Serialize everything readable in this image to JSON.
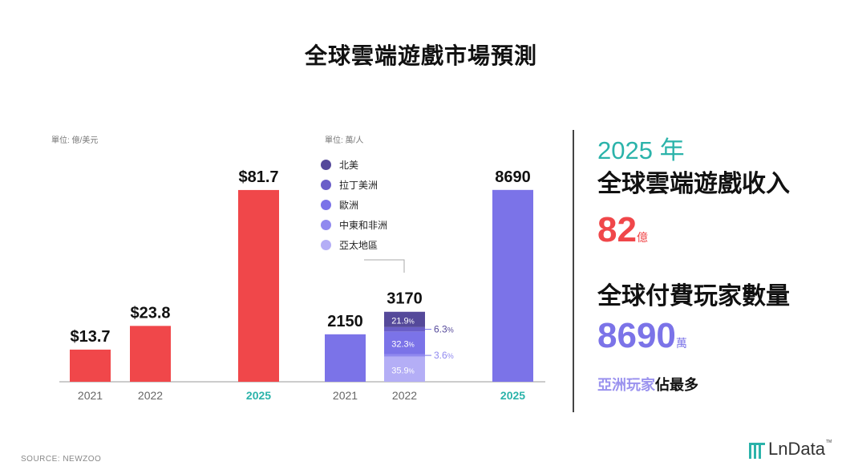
{
  "title": "全球雲端遊戲市場預測",
  "units": {
    "revenue": "單位: 億/美元",
    "players": "單位: 萬/人"
  },
  "legend": [
    {
      "label": "北美",
      "color": "#55499a"
    },
    {
      "label": "拉丁美洲",
      "color": "#6a5ec8"
    },
    {
      "label": "歐洲",
      "color": "#7b73e8"
    },
    {
      "label": "中東和非洲",
      "color": "#9089ef"
    },
    {
      "label": "亞太地區",
      "color": "#b4aef6"
    }
  ],
  "chart_data": [
    {
      "type": "bar",
      "categories": [
        "2021",
        "2022",
        "2025"
      ],
      "values": [
        13.7,
        23.8,
        81.7
      ],
      "value_labels": [
        "$13.7",
        "$23.8",
        "$81.7"
      ],
      "ylim": [
        0,
        95
      ],
      "color": "#f0474a",
      "highlight_category": "2025"
    },
    {
      "type": "bar",
      "categories": [
        "2021",
        "2022",
        "2025"
      ],
      "values": [
        2150,
        3170,
        8690
      ],
      "value_labels": [
        "2150",
        "3170",
        "8690"
      ],
      "ylim": [
        0,
        10100
      ],
      "color": "#7b73e8",
      "highlight_category": "2025",
      "breakdown_2022": [
        {
          "name": "亞太地區",
          "percent": 35.9
        },
        {
          "name": "中東和非洲",
          "percent": 3.6
        },
        {
          "name": "歐洲",
          "percent": 32.3
        },
        {
          "name": "拉丁美洲",
          "percent": 6.3
        },
        {
          "name": "北美",
          "percent": 21.9
        }
      ]
    }
  ],
  "panel": {
    "year": "2025 年",
    "revenue_heading": "全球雲端遊戲收入",
    "revenue_value": "82",
    "revenue_unit": "億",
    "players_heading": "全球付費玩家數量",
    "players_value": "8690",
    "players_unit": "萬",
    "note_highlight": "亞洲玩家",
    "note_rest": "佔最多"
  },
  "source": "SOURCE: NEWZOO",
  "logo": "LnData",
  "colors": {
    "red": "#f0474a",
    "purple": "#7b73e8",
    "teal": "#2bb3aa"
  }
}
